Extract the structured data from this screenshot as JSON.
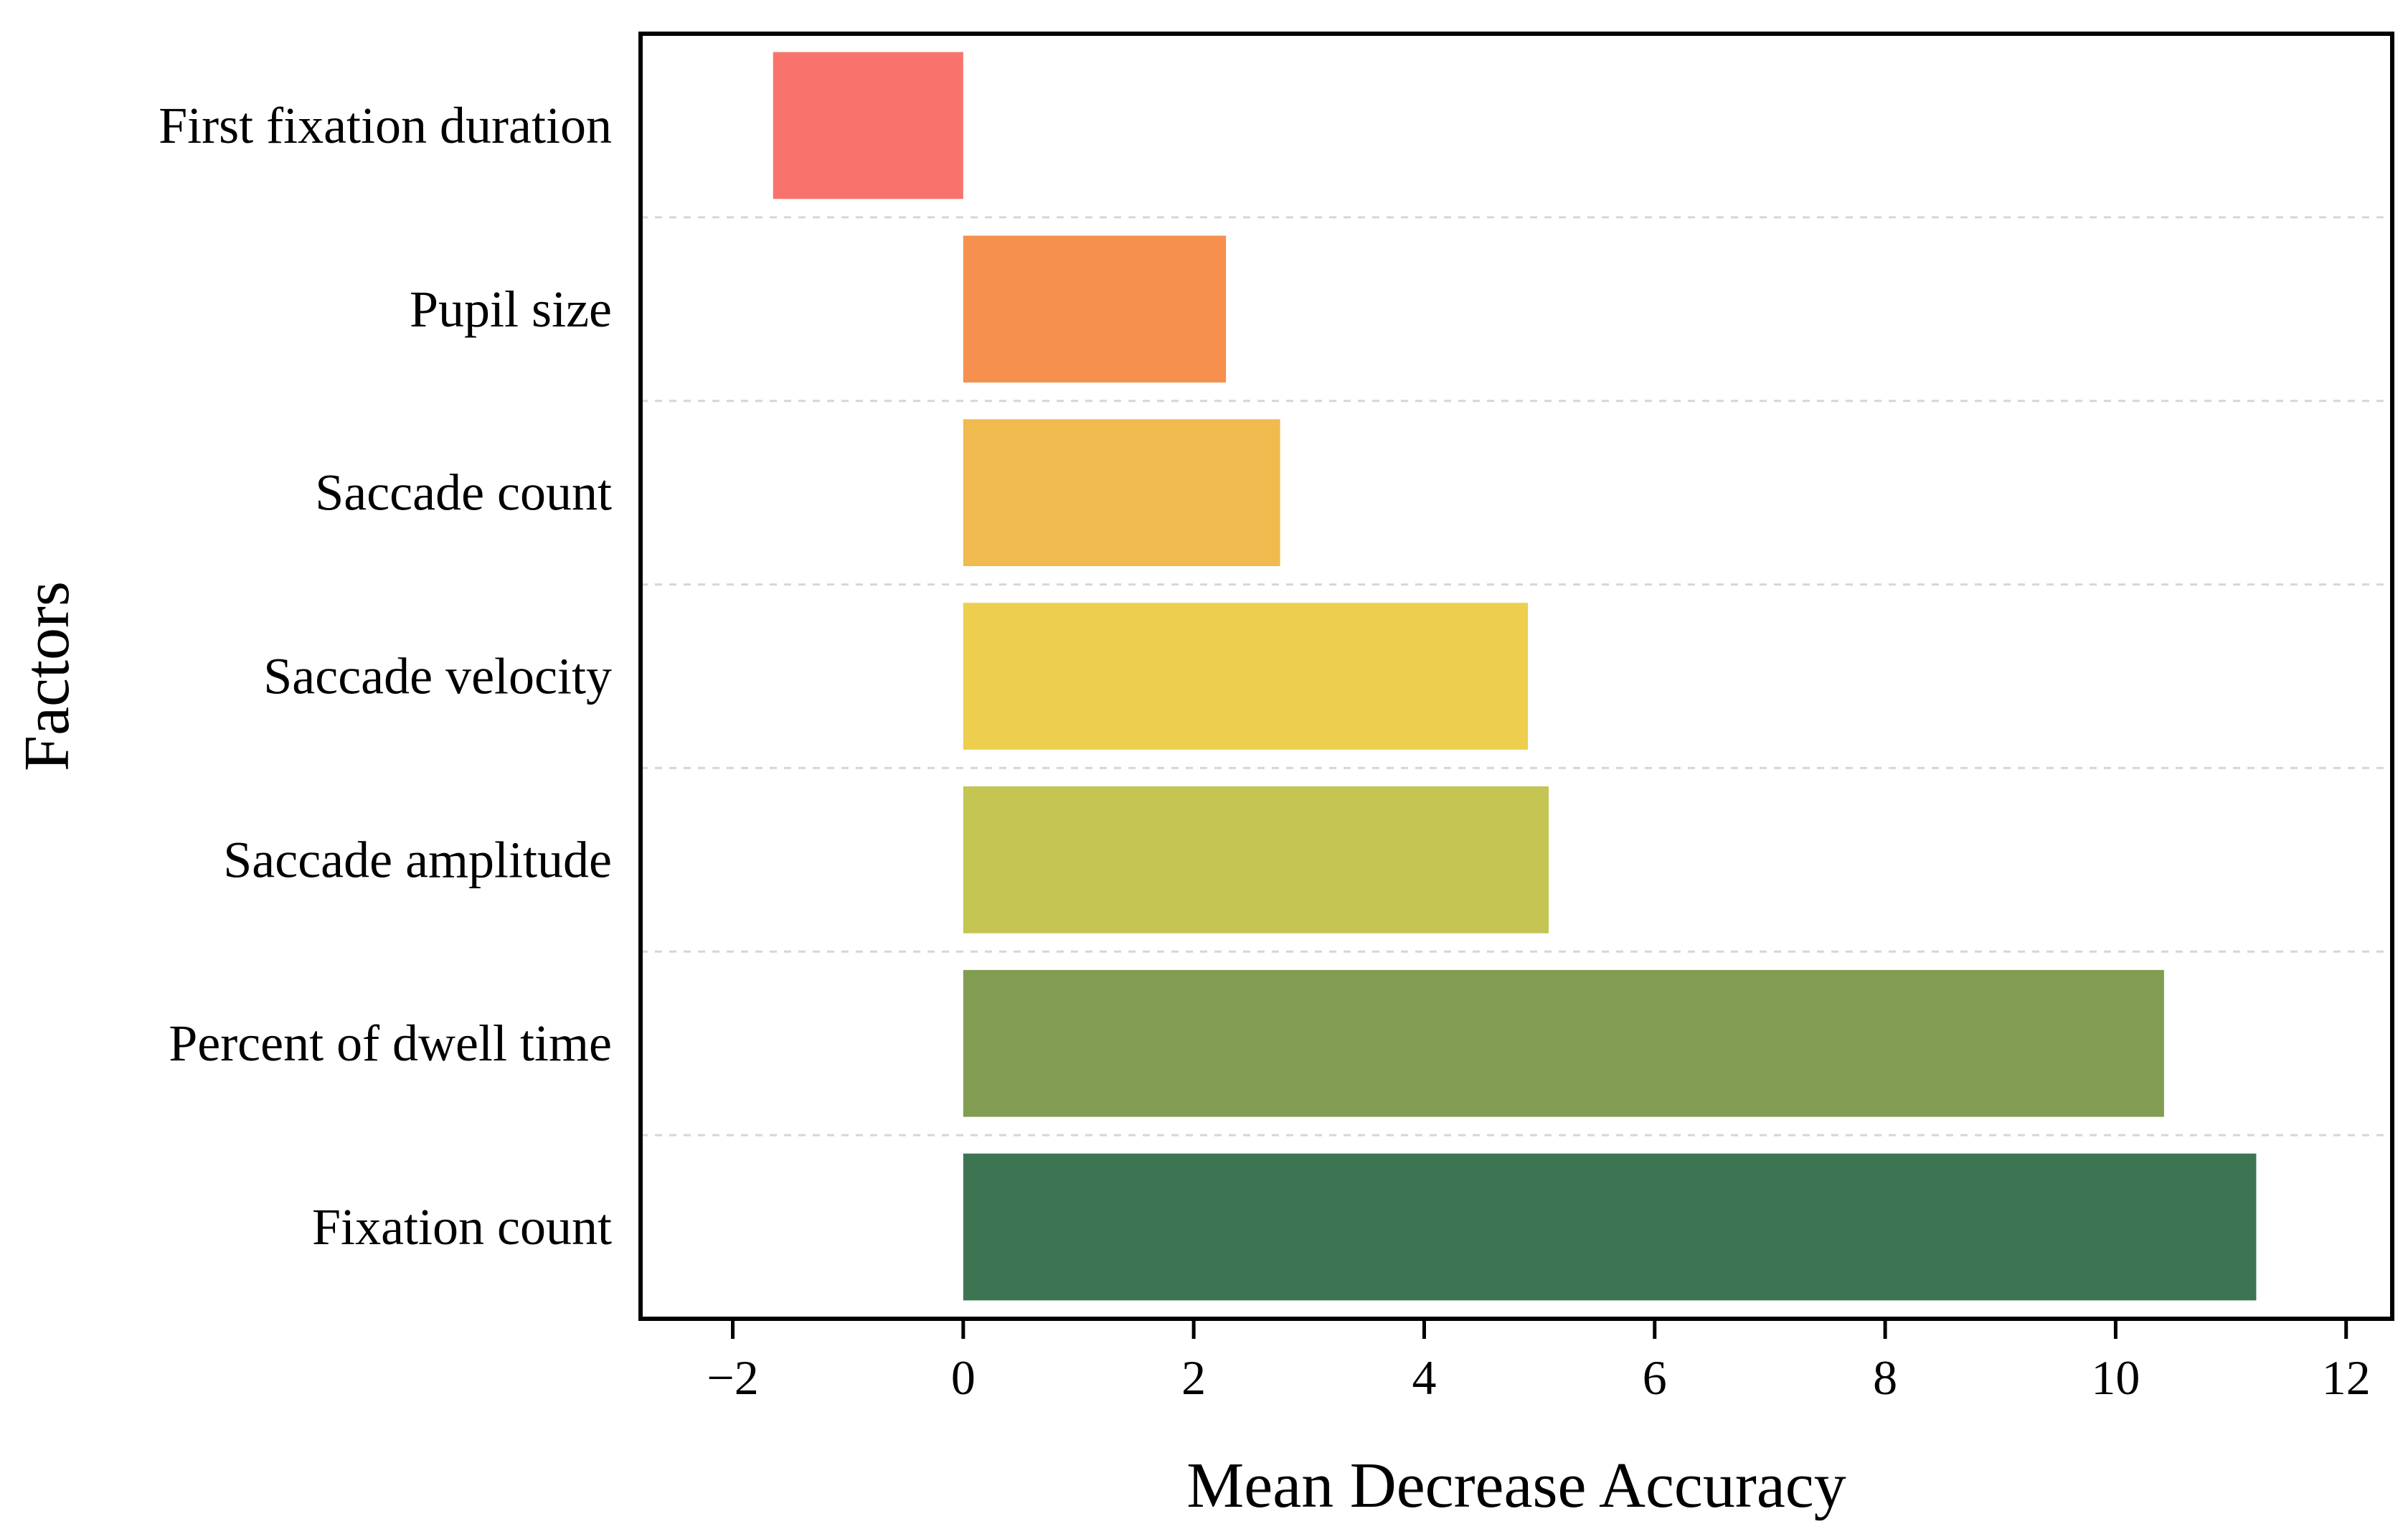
{
  "chart_data": {
    "type": "bar",
    "orientation": "horizontal",
    "categories": [
      "First fixation duration",
      "Pupil size",
      "Saccade count",
      "Saccade velocity",
      "Saccade amplitude",
      "Percent of dwell time",
      "Fixation count"
    ],
    "values": [
      -1.65,
      2.28,
      2.75,
      4.9,
      5.08,
      10.42,
      11.22
    ],
    "colors": [
      "#F8736C",
      "#F5904E",
      "#F0BA4E",
      "#EDCE4E",
      "#C4C552",
      "#829D51",
      "#3D7552"
    ],
    "xlabel": "Mean Decrease Accuracy",
    "ylabel": "Factors",
    "xlim": [
      -2.8,
      12.4
    ],
    "xticks": [
      -2,
      0,
      2,
      4,
      6,
      8,
      10,
      12
    ],
    "xtick_labels": [
      "−2",
      "0",
      "2",
      "4",
      "6",
      "8",
      "10",
      "12"
    ],
    "grid": "horizontal dashed separators between categories",
    "legend": "none"
  }
}
